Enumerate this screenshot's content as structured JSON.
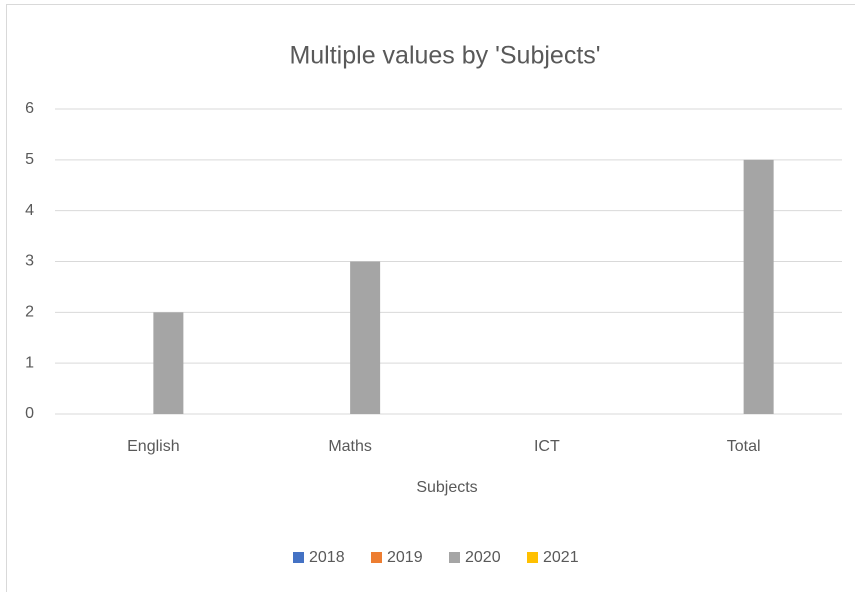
{
  "chart_data": {
    "type": "bar",
    "title": "Multiple values by 'Subjects'",
    "x_label": "Subjects",
    "categories": [
      "English",
      "Maths",
      "ICT",
      "Total"
    ],
    "series": [
      {
        "name": "2018",
        "color": "#4472c4",
        "values": [
          0,
          0,
          0,
          0
        ]
      },
      {
        "name": "2019",
        "color": "#ed7d31",
        "values": [
          0,
          0,
          0,
          0
        ]
      },
      {
        "name": "2020",
        "color": "#a5a5a5",
        "values": [
          2,
          3,
          0,
          5
        ]
      },
      {
        "name": "2021",
        "color": "#ffc000",
        "values": [
          0,
          0,
          0,
          0
        ]
      }
    ],
    "ylim": [
      0,
      6
    ],
    "yticks": [
      0,
      1,
      2,
      3,
      4,
      5,
      6
    ],
    "grid": true,
    "legend": "bottom"
  }
}
